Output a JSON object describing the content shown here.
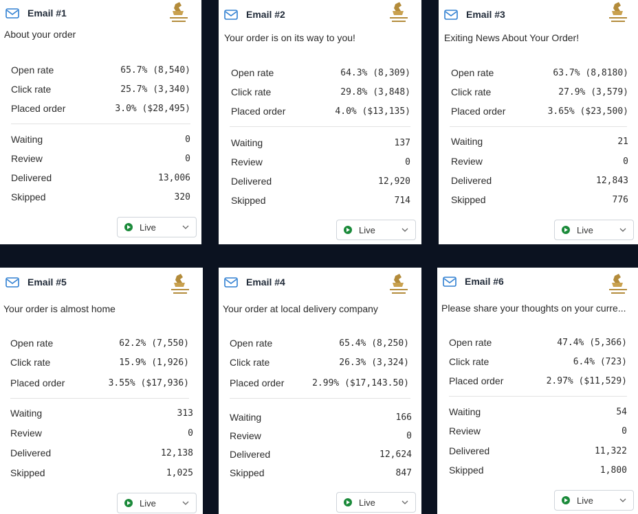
{
  "cards": [
    {
      "title": "Email #1",
      "subject": "About your order",
      "metrics": [
        {
          "label": "Open rate",
          "value": "65.7% (8,540)"
        },
        {
          "label": "Click rate",
          "value": "25.7% (3,340)"
        },
        {
          "label": "Placed order",
          "value": "3.0% ($28,495)"
        }
      ],
      "counts": [
        {
          "label": "Waiting",
          "value": "0"
        },
        {
          "label": "Review",
          "value": "0"
        },
        {
          "label": "Delivered",
          "value": "13,006"
        },
        {
          "label": "Skipped",
          "value": "320"
        }
      ],
      "status": "Live"
    },
    {
      "title": "Email #2",
      "subject": "Your order is on its way to you!",
      "metrics": [
        {
          "label": "Open rate",
          "value": "64.3% (8,309)"
        },
        {
          "label": "Click rate",
          "value": "29.8% (3,848)"
        },
        {
          "label": "Placed order",
          "value": "4.0% ($13,135)"
        }
      ],
      "counts": [
        {
          "label": "Waiting",
          "value": "137"
        },
        {
          "label": "Review",
          "value": "0"
        },
        {
          "label": "Delivered",
          "value": "12,920"
        },
        {
          "label": "Skipped",
          "value": "714"
        }
      ],
      "status": "Live"
    },
    {
      "title": "Email #3",
      "subject": "Exiting News About Your Order!",
      "metrics": [
        {
          "label": "Open rate",
          "value": "63.7% (8,8180)"
        },
        {
          "label": "Click rate",
          "value": "27.9% (3,579)"
        },
        {
          "label": "Placed order",
          "value": "3.65% ($23,500)"
        }
      ],
      "counts": [
        {
          "label": "Waiting",
          "value": "21"
        },
        {
          "label": "Review",
          "value": "0"
        },
        {
          "label": "Delivered",
          "value": "12,843"
        },
        {
          "label": "Skipped",
          "value": "776"
        }
      ],
      "status": "Live"
    },
    {
      "title": "Email #5",
      "subject": "Your order is almost home",
      "metrics": [
        {
          "label": "Open rate",
          "value": "62.2% (7,550)"
        },
        {
          "label": "Click rate",
          "value": "15.9% (1,926)"
        },
        {
          "label": "Placed order",
          "value": "3.55% ($17,936)"
        }
      ],
      "counts": [
        {
          "label": "Waiting",
          "value": "313"
        },
        {
          "label": "Review",
          "value": "0"
        },
        {
          "label": "Delivered",
          "value": "12,138"
        },
        {
          "label": "Skipped",
          "value": "1,025"
        }
      ],
      "status": "Live"
    },
    {
      "title": "Email #4",
      "subject": "Your order at local delivery company",
      "metrics": [
        {
          "label": "Open rate",
          "value": "65.4% (8,250)"
        },
        {
          "label": "Click rate",
          "value": "26.3% (3,324)"
        },
        {
          "label": "Placed order",
          "value": "2.99% ($17,143.50)"
        }
      ],
      "counts": [
        {
          "label": "Waiting",
          "value": "166"
        },
        {
          "label": "Review",
          "value": "0"
        },
        {
          "label": "Delivered",
          "value": "12,624"
        },
        {
          "label": "Skipped",
          "value": "847"
        }
      ],
      "status": "Live"
    },
    {
      "title": "Email #6",
      "subject": "Please share your thoughts on your curre...",
      "metrics": [
        {
          "label": "Open rate",
          "value": "47.4% (5,366)"
        },
        {
          "label": "Click rate",
          "value": "6.4% (723)"
        },
        {
          "label": "Placed order",
          "value": "2.97% ($11,529)"
        }
      ],
      "counts": [
        {
          "label": "Waiting",
          "value": "54"
        },
        {
          "label": "Review",
          "value": "0"
        },
        {
          "label": "Delivered",
          "value": "11,322"
        },
        {
          "label": "Skipped",
          "value": "1,800"
        }
      ],
      "status": "Live"
    }
  ],
  "icons": {
    "email": "envelope-icon",
    "logo": "wizard-flows-logo",
    "status": "play-circle-icon",
    "dropdown": "chevron-down-icon"
  },
  "colors": {
    "accent": "#2f7fd1",
    "live": "#1b8a3a",
    "background": "#0b1220"
  }
}
